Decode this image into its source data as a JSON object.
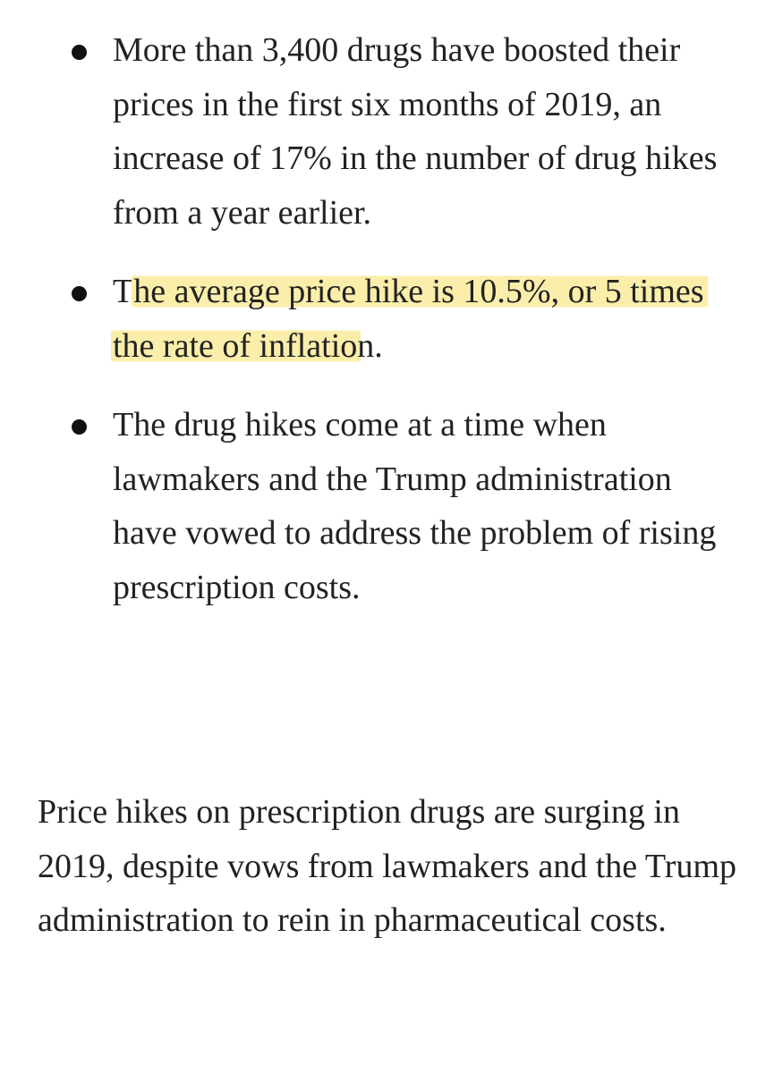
{
  "bullets": [
    {
      "text": "More than 3,400 drugs have boosted their prices in the first six months of 2019, an increase of 17% in the number of drug hikes from a year earlier."
    },
    {
      "pre": "T",
      "highlight": "he average price hike is 10.5%, or 5 times the rate of inflatio",
      "post": "n."
    },
    {
      "text": "The drug hikes come at a time when lawmakers and the Trump administration have vowed to address the problem of rising prescription costs."
    }
  ],
  "paragraph": "Price hikes on prescription drugs are surging in 2019, despite vows from lawmakers and the Trump administration to rein in pharmaceutical costs.",
  "colors": {
    "highlight": "#fbeeaa",
    "text": "#222222"
  }
}
